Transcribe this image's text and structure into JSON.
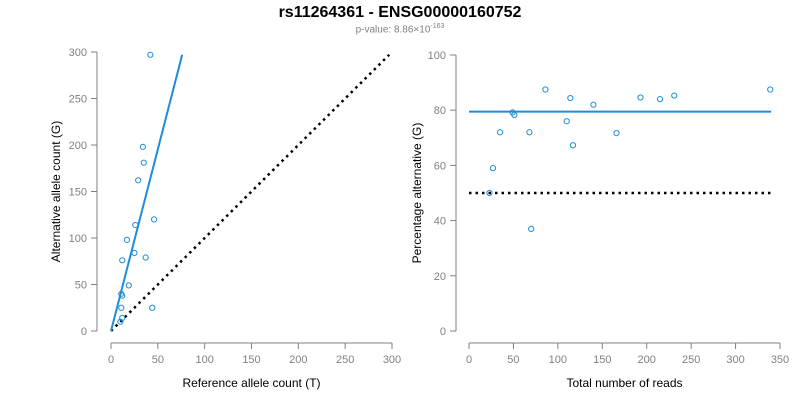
{
  "title": "rs11264361 - ENSG00000160752",
  "subtitle": {
    "prefix": "p-value: 8.86×10",
    "exponent": "-163"
  },
  "colors": {
    "points": "#1f8dd6",
    "fit_line": "#1f8dd6",
    "reference_line": "#000000",
    "axes": "#808080"
  },
  "chart_data": [
    {
      "type": "scatter",
      "xlabel": "Reference allele count (T)",
      "ylabel": "Alternative allele count (G)",
      "xlim": [
        0,
        300
      ],
      "ylim": [
        0,
        300
      ],
      "xticks": [
        0,
        50,
        100,
        150,
        200,
        250,
        300
      ],
      "yticks": [
        0,
        50,
        100,
        150,
        200,
        250,
        300
      ],
      "grid": false,
      "points": {
        "x": [
          42,
          34,
          35,
          29,
          46,
          26,
          17,
          25,
          12,
          37,
          19,
          11,
          12,
          11,
          44,
          12,
          10
        ],
        "y": [
          297,
          198,
          181,
          162,
          120,
          114,
          98,
          84,
          76,
          79,
          49,
          40,
          38,
          25,
          25,
          14,
          10
        ]
      },
      "fit_line": {
        "x": [
          0,
          76
        ],
        "y": [
          0,
          297
        ],
        "style": "solid"
      },
      "reference_line": {
        "x": [
          0,
          297
        ],
        "y": [
          0,
          297
        ],
        "style": "dotted"
      }
    },
    {
      "type": "scatter",
      "xlabel": "Total number of reads",
      "ylabel": "Percentage alternative (G)",
      "xlim": [
        0,
        350
      ],
      "ylim": [
        0,
        100
      ],
      "xticks": [
        0,
        50,
        100,
        150,
        200,
        250,
        300,
        350
      ],
      "yticks": [
        0,
        20,
        40,
        60,
        80,
        100
      ],
      "grid": false,
      "points": {
        "x": [
          339,
          231,
          215,
          193,
          86,
          114,
          140,
          110,
          49,
          51,
          35,
          68,
          166,
          117,
          27,
          23,
          70
        ],
        "y": [
          87.5,
          85.3,
          84,
          84.6,
          87.5,
          84.4,
          82,
          76,
          79.2,
          78.3,
          72,
          72,
          71.7,
          67.3,
          59,
          50,
          37
        ]
      },
      "fit_line": {
        "x": [
          0,
          340
        ],
        "y": [
          79.5,
          79.5
        ],
        "style": "solid"
      },
      "reference_line": {
        "x": [
          0,
          340
        ],
        "y": [
          50,
          50
        ],
        "style": "dotted"
      }
    }
  ]
}
